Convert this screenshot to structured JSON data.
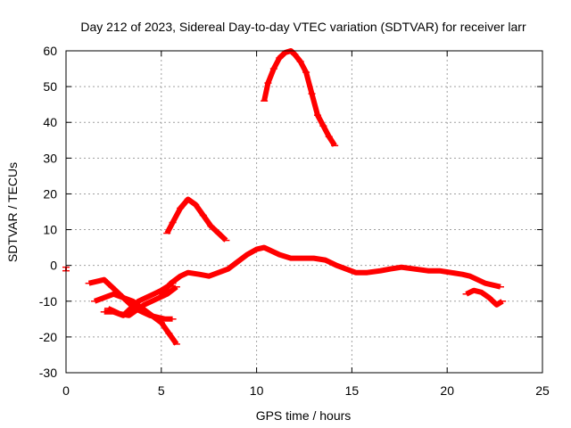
{
  "chart_data": {
    "type": "scatter",
    "title": "Day 212 of 2023, Sidereal Day-to-day VTEC variation (SDTVAR) for receiver larr",
    "xlabel": "GPS time / hours",
    "ylabel": "SDTVAR / TECUs",
    "xlim": [
      0,
      25
    ],
    "ylim": [
      -30,
      60
    ],
    "xticks": [
      0,
      5,
      10,
      15,
      20,
      25
    ],
    "yticks": [
      -30,
      -20,
      -10,
      0,
      10,
      20,
      30,
      40,
      50,
      60
    ],
    "grid": true,
    "legend": "none",
    "series_color": "#ff0000",
    "series": [
      {
        "name": "arc-peak-60",
        "x": [
          10.4,
          10.6,
          10.9,
          11.2,
          11.5,
          11.8,
          12.0,
          12.3,
          12.6,
          12.9,
          13.2,
          13.5,
          13.8,
          14.1
        ],
        "y": [
          46,
          51,
          55,
          58,
          59.5,
          60,
          59,
          57,
          54,
          48,
          42,
          39,
          36,
          33.5
        ]
      },
      {
        "name": "arc-peak-19",
        "x": [
          5.3,
          5.6,
          6.0,
          6.4,
          6.8,
          7.2,
          7.6,
          8.0,
          8.4
        ],
        "y": [
          9,
          12,
          16,
          18.5,
          17,
          14,
          11,
          9,
          7
        ]
      },
      {
        "name": "arc-main",
        "x": [
          5.0,
          5.5,
          6.0,
          6.4,
          7.0,
          7.5,
          8.0,
          8.5,
          9.0,
          9.5,
          10.0,
          10.4,
          10.8,
          11.2,
          11.8,
          12.5,
          13.0,
          13.6,
          14.2,
          14.7,
          15.2,
          15.8,
          16.5,
          17.0,
          17.6,
          18.3,
          19.0,
          19.6,
          20.2,
          20.8,
          21.2,
          21.6,
          22.0,
          22.4,
          22.8
        ],
        "y": [
          -8,
          -5,
          -3,
          -2,
          -2.5,
          -3,
          -2,
          -1,
          1,
          3,
          4.5,
          5,
          4,
          3,
          2,
          2,
          2,
          1.5,
          0,
          -1,
          -2,
          -2,
          -1.5,
          -1,
          -0.5,
          -1,
          -1.5,
          -1.5,
          -2,
          -2.5,
          -3,
          -4,
          -5,
          -5.5,
          -6
        ]
      },
      {
        "name": "arc-a",
        "x": [
          1.2,
          1.6,
          2.0,
          2.4,
          2.8,
          3.2,
          3.6,
          4.0,
          4.4,
          4.8,
          5.2,
          5.6
        ],
        "y": [
          -5,
          -4.5,
          -4,
          -6,
          -8,
          -10,
          -12,
          -13,
          -14,
          -14.5,
          -15,
          -15
        ]
      },
      {
        "name": "arc-b",
        "x": [
          1.5,
          2.0,
          2.5,
          3.0,
          3.5,
          4.0,
          4.5,
          5.0,
          5.4,
          5.8
        ],
        "y": [
          -10,
          -9,
          -8,
          -9,
          -10,
          -12,
          -14,
          -16,
          -19,
          -22
        ]
      },
      {
        "name": "arc-c",
        "x": [
          2.0,
          2.5,
          3.0,
          3.4,
          3.8,
          4.2,
          4.6,
          5.0,
          5.3,
          5.6
        ],
        "y": [
          -13,
          -13,
          -14,
          -12,
          -10,
          -9,
          -8,
          -7,
          -6,
          -5
        ]
      },
      {
        "name": "arc-d",
        "x": [
          2.2,
          2.8,
          3.3,
          3.7,
          4.1,
          4.5,
          4.9,
          5.3,
          5.8
        ],
        "y": [
          -12,
          -13.5,
          -14,
          -12.5,
          -11,
          -10,
          -9,
          -8,
          -6
        ]
      },
      {
        "name": "arc-e",
        "x": [
          21.0,
          21.4,
          21.8,
          22.2,
          22.6,
          22.9
        ],
        "y": [
          -8,
          -7,
          -7.5,
          -9,
          -11,
          -10
        ]
      },
      {
        "name": "tick-near-zero",
        "x": [
          0.0,
          0.0
        ],
        "y": [
          -1.5,
          -0.5
        ]
      }
    ]
  }
}
